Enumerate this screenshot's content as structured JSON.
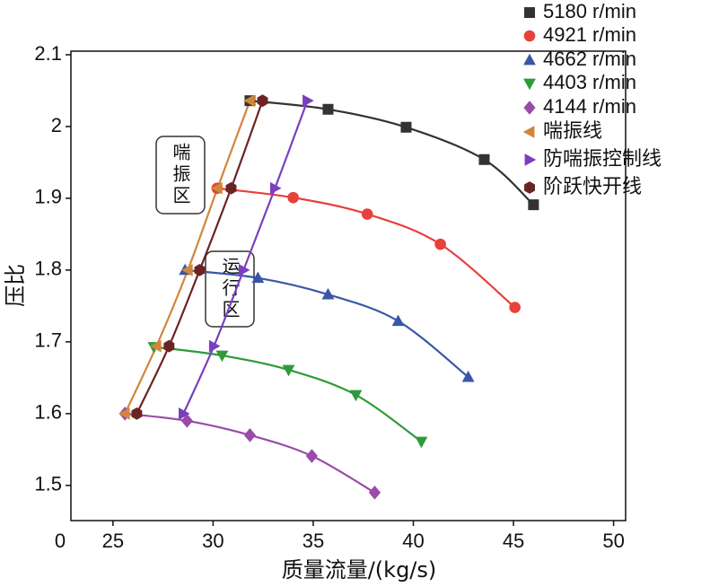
{
  "chart_data": {
    "type": "scatter",
    "xlabel": "质量流量/(kg/s)",
    "ylabel": "压比",
    "x_origin_label": "0",
    "xlim": [
      22.9,
      50.6
    ],
    "xticks": [
      25,
      30,
      35,
      40,
      45,
      50
    ],
    "ylim": [
      1.451,
      2.105
    ],
    "yticks": [
      1.5,
      1.6,
      1.7,
      1.8,
      1.9,
      2.0,
      2.1
    ],
    "annotations": [
      "喘振区",
      "运行区"
    ],
    "series": [
      {
        "name": "5180 r/min",
        "color": "#333333",
        "marker": "square",
        "x": [
          31.84,
          35.74,
          39.64,
          43.54,
          46.0
        ],
        "y": [
          2.036,
          2.024,
          1.999,
          1.954,
          1.891
        ]
      },
      {
        "name": "4921 r/min",
        "color": "#e8403a",
        "marker": "circle",
        "x": [
          30.2,
          34.0,
          37.7,
          41.35,
          45.07
        ],
        "y": [
          1.914,
          1.901,
          1.878,
          1.836,
          1.748
        ]
      },
      {
        "name": "4662 r/min",
        "color": "#3a56a8",
        "marker": "triangle-up",
        "x": [
          28.6,
          32.24,
          35.74,
          39.24,
          42.74
        ],
        "y": [
          1.8,
          1.789,
          1.766,
          1.729,
          1.651
        ]
      },
      {
        "name": "4403 r/min",
        "color": "#2f9a3a",
        "marker": "triangle-down",
        "x": [
          27.04,
          30.45,
          33.77,
          37.13,
          40.4
        ],
        "y": [
          1.693,
          1.681,
          1.661,
          1.626,
          1.561
        ]
      },
      {
        "name": "4144 r/min",
        "color": "#9a4aa8",
        "marker": "diamond",
        "x": [
          25.6,
          28.7,
          31.84,
          34.93,
          38.07
        ],
        "y": [
          1.6,
          1.59,
          1.57,
          1.541,
          1.49
        ]
      },
      {
        "name": "喘振线",
        "color": "#d2863a",
        "marker": "triangle-left",
        "x": [
          25.6,
          27.17,
          28.74,
          30.22,
          31.84
        ],
        "y": [
          1.6,
          1.694,
          1.8,
          1.914,
          2.036
        ]
      },
      {
        "name": "防喘振控制线",
        "color": "#7a3fbf",
        "marker": "triangle-right",
        "x": [
          28.52,
          30.04,
          31.52,
          33.09,
          34.71
        ],
        "y": [
          1.6,
          1.694,
          1.8,
          1.914,
          2.036
        ]
      },
      {
        "name": "阶跃快开线",
        "color": "#6b2424",
        "marker": "hexagon",
        "x": [
          26.19,
          27.8,
          29.33,
          30.9,
          32.47
        ],
        "y": [
          1.6,
          1.694,
          1.8,
          1.914,
          2.036
        ]
      }
    ]
  }
}
